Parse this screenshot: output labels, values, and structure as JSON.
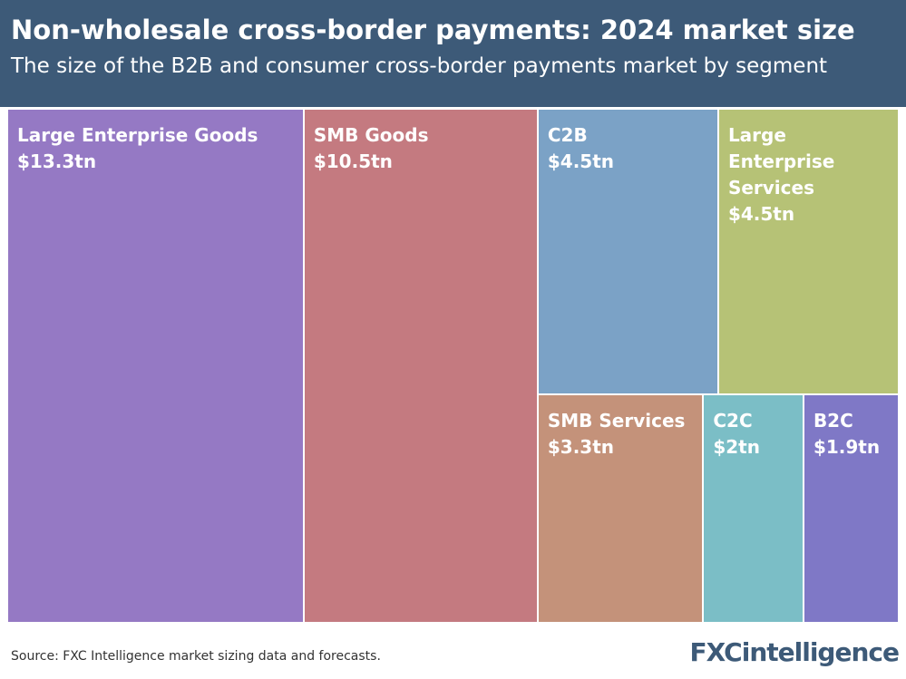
{
  "chart_data": {
    "type": "treemap",
    "title": "Non-wholesale cross-border payments: 2024 market size",
    "subtitle": "The size of the B2B and consumer cross-border payments market by segment",
    "categories": [
      "Large Enterprise Goods",
      "SMB Goods",
      "C2B",
      "Large Enterprise Services",
      "SMB Services",
      "C2C",
      "B2C"
    ],
    "values": [
      13.3,
      10.5,
      4.5,
      4.5,
      3.3,
      2,
      1.9
    ],
    "value_labels": [
      "$13.3tn",
      "$10.5tn",
      "$4.5tn",
      "$4.5tn",
      "$3.3tn",
      "$2tn",
      "$1.9tn"
    ],
    "colors": [
      "#9579c4",
      "#c47a80",
      "#7ba2c6",
      "#b6c276",
      "#c4927a",
      "#7bbec6",
      "#7f78c6"
    ],
    "source": "Source: FXC Intelligence market sizing data and forecasts.",
    "logo": "FXCintelligence"
  }
}
